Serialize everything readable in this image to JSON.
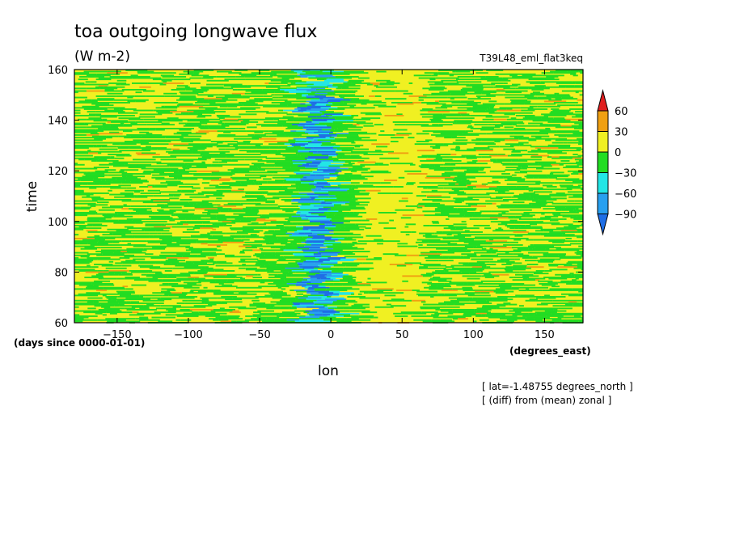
{
  "title": "toa outgoing longwave flux",
  "units": "(W m-2)",
  "experiment": "T39L48_eml_flat3keq",
  "xlabel": "lon",
  "ylabel": "time",
  "x_units": "(degrees_east)",
  "y_units": "(days since 0000-01-01)",
  "annotations": [
    "[ lat=-1.48755 degrees_north ]",
    "[ (diff) from (mean) zonal ]"
  ],
  "chart_data": {
    "type": "heatmap",
    "title": "toa outgoing longwave flux",
    "xlabel": "lon",
    "ylabel": "time",
    "xlim": [
      -180,
      177
    ],
    "ylim": [
      60,
      160
    ],
    "xticks": [
      -150,
      -100,
      -50,
      0,
      50,
      100,
      150
    ],
    "yticks": [
      60,
      80,
      100,
      120,
      140,
      160
    ],
    "colorbar": {
      "levels": [
        -90,
        -60,
        -30,
        0,
        30,
        60
      ],
      "colors": [
        "#1e6ee6",
        "#28a0f0",
        "#22e6e6",
        "#22dd22",
        "#f0f022",
        "#f0a012",
        "#e01e1e"
      ],
      "extend": "both"
    },
    "field_description": {
      "background_colors": [
        "#f0f022",
        "#22dd22"
      ],
      "convective_band_lon_range": [
        -35,
        15
      ],
      "convective_band_core_lon": -15,
      "min_value_class": "-90"
    }
  },
  "colors": {
    "background": "#ffffff",
    "axis": "#000000"
  }
}
